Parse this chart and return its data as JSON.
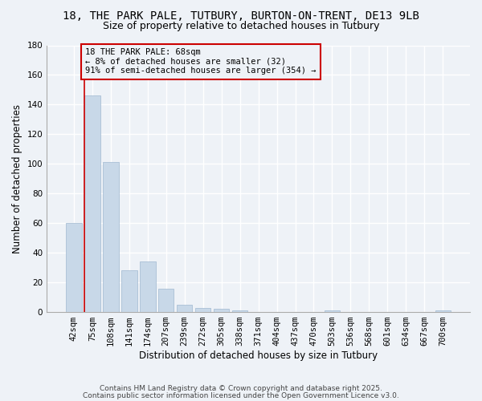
{
  "title_line1": "18, THE PARK PALE, TUTBURY, BURTON-ON-TRENT, DE13 9LB",
  "title_line2": "Size of property relative to detached houses in Tutbury",
  "xlabel": "Distribution of detached houses by size in Tutbury",
  "ylabel": "Number of detached properties",
  "bar_color": "#c8d8e8",
  "bar_edge_color": "#a0b8d0",
  "categories": [
    "42sqm",
    "75sqm",
    "108sqm",
    "141sqm",
    "174sqm",
    "207sqm",
    "239sqm",
    "272sqm",
    "305sqm",
    "338sqm",
    "371sqm",
    "404sqm",
    "437sqm",
    "470sqm",
    "503sqm",
    "536sqm",
    "568sqm",
    "601sqm",
    "634sqm",
    "667sqm",
    "700sqm"
  ],
  "values": [
    60,
    146,
    101,
    28,
    34,
    16,
    5,
    3,
    2,
    1,
    0,
    0,
    0,
    0,
    1,
    0,
    0,
    0,
    0,
    0,
    1
  ],
  "ylim": [
    0,
    180
  ],
  "yticks": [
    0,
    20,
    40,
    60,
    80,
    100,
    120,
    140,
    160,
    180
  ],
  "annotation_box_text": "18 THE PARK PALE: 68sqm\n← 8% of detached houses are smaller (32)\n91% of semi-detached houses are larger (354) →",
  "box_color": "#cc0000",
  "bg_color": "#eef2f7",
  "grid_color": "#ffffff",
  "footer_line1": "Contains HM Land Registry data © Crown copyright and database right 2025.",
  "footer_line2": "Contains public sector information licensed under the Open Government Licence v3.0.",
  "title_fontsize": 10,
  "subtitle_fontsize": 9,
  "axis_label_fontsize": 8.5,
  "tick_fontsize": 7.5,
  "annotation_fontsize": 7.5,
  "footer_fontsize": 6.5
}
